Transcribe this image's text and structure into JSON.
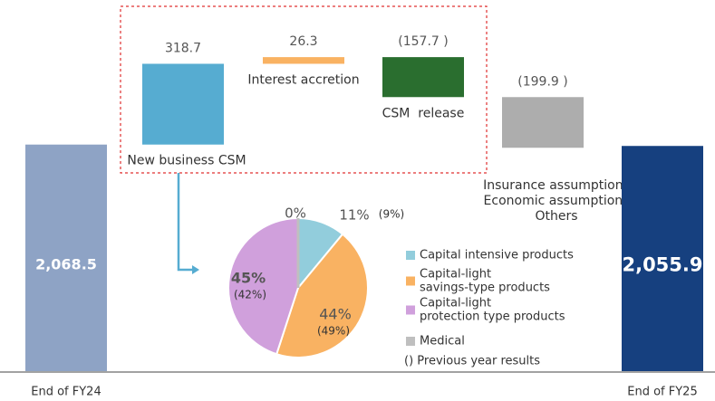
{
  "chart_data": [
    {
      "type": "waterfall",
      "categories": [
        "End of FY24",
        "New business CSM",
        "Interest accretion",
        "CSM  release",
        [
          "Insurance assumptions",
          "Economic assumptions",
          "Others"
        ],
        "End of FY25"
      ],
      "values": [
        2068.5,
        318.7,
        26.3,
        -157.7,
        -199.9,
        2055.9
      ],
      "value_labels": [
        "2,068.5",
        "318.7",
        "26.3",
        "(157.7 )",
        "(199.9 )",
        "2,055.9"
      ],
      "totals": [
        true,
        false,
        false,
        false,
        false,
        true
      ],
      "colors": [
        "#8ea3c5",
        "#56acd1",
        "#f9b262",
        "#2a6e2f",
        "#adadad",
        "#16407f"
      ]
    },
    {
      "type": "pie",
      "categories": [
        [
          "Capital intensive products"
        ],
        [
          "Capital-light",
          "savings-type products"
        ],
        [
          "Capital-light",
          "protection type products"
        ],
        [
          "Medical"
        ]
      ],
      "values": [
        11,
        44,
        45,
        0
      ],
      "value_labels": [
        "11%",
        "44%",
        "45%",
        "0%"
      ],
      "previous_values": [
        9,
        49,
        42,
        null
      ],
      "previous_labels": [
        "(9%)",
        "(49%)",
        "(42%)",
        null
      ],
      "colors": [
        "#92cddc",
        "#f9b262",
        "#d0a0dc",
        "#bfbfbf"
      ],
      "legend_note": "() Previous year results"
    }
  ]
}
